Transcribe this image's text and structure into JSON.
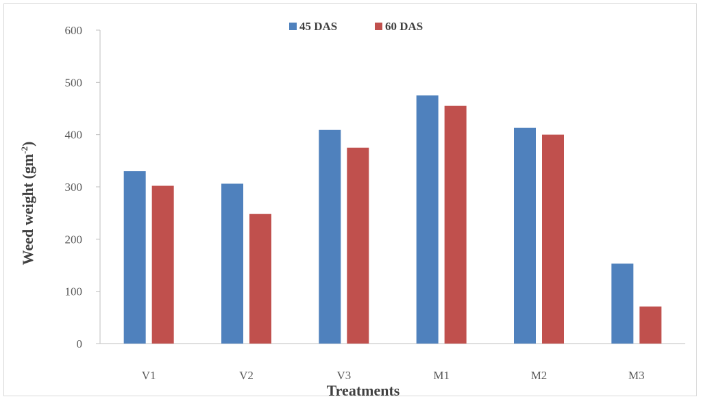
{
  "chart_data": {
    "type": "bar",
    "categories": [
      "V1",
      "V2",
      "V3",
      "M1",
      "M2",
      "M3"
    ],
    "series": [
      {
        "name": "45 DAS",
        "color": "#4f81bd",
        "values": [
          330,
          306,
          409,
          475,
          413,
          153
        ]
      },
      {
        "name": "60 DAS",
        "color": "#c0504d",
        "values": [
          302,
          248,
          375,
          455,
          400,
          71
        ]
      }
    ],
    "xlabel": "Treatments",
    "ylabel_main": "Weed weight (gm",
    "ylabel_sup": "-2",
    "ylabel_end": ")",
    "ylim": [
      0,
      600
    ],
    "yticks": [
      "0",
      "100",
      "200",
      "300",
      "400",
      "500",
      "600"
    ],
    "grid": false,
    "legend_position": "top-center"
  }
}
